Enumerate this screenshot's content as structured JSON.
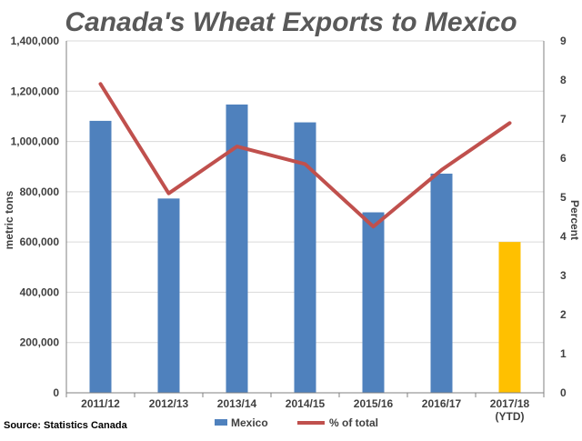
{
  "chart_data": {
    "type": "bar",
    "title": "Canada's Wheat Exports to Mexico",
    "categories": [
      "2011/12",
      "2012/13",
      "2013/14",
      "2014/15",
      "2015/16",
      "2016/17",
      "2017/18"
    ],
    "category_sublabels": [
      "",
      "",
      "",
      "",
      "",
      "",
      "(YTD)"
    ],
    "ylabel": "metric tons",
    "y2label": "Percent",
    "ylim": [
      0,
      1400000
    ],
    "y2lim": [
      0,
      9
    ],
    "yticks": [
      "0",
      "200,000",
      "400,000",
      "600,000",
      "800,000",
      "1,000,000",
      "1,200,000",
      "1,400,000"
    ],
    "y2ticks": [
      "0",
      "1",
      "2",
      "3",
      "4",
      "5",
      "6",
      "7",
      "8",
      "9"
    ],
    "grid": true,
    "legend_position": "bottom",
    "series": [
      {
        "name": "Mexico",
        "type": "bar",
        "axis": "left",
        "color": "#4F81BD",
        "highlight_color": "#FFC000",
        "highlight_index": 6,
        "values": [
          1082000,
          773000,
          1147000,
          1076000,
          718000,
          872000,
          600000
        ]
      },
      {
        "name": "% of total",
        "type": "line",
        "axis": "right",
        "color": "#C0504D",
        "values": [
          7.9,
          5.1,
          6.3,
          5.85,
          4.25,
          5.7,
          6.9
        ]
      }
    ]
  },
  "source": "Source: Statistics Canada"
}
